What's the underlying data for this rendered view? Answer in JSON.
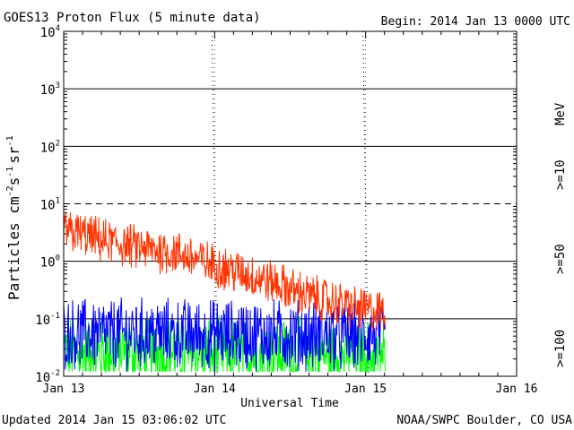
{
  "chart_data": {
    "type": "line",
    "title": "GOES13 Proton Flux (5 minute data)",
    "begin_label": "Begin: 2014 Jan 13 0000 UTC",
    "xlabel": "Universal Time",
    "ylabel_main": "Particles cm",
    "ylabel_sup1": "-2",
    "ylabel_s": "s",
    "ylabel_sup2": "-1",
    "ylabel_sr": "sr",
    "ylabel_sup3": "-1",
    "y_scale": "log",
    "ylim": [
      0.01,
      10000
    ],
    "xlim_days": [
      0,
      3
    ],
    "x_ticks": [
      {
        "day": 0,
        "label": "Jan 13"
      },
      {
        "day": 1,
        "label": "Jan 14"
      },
      {
        "day": 2,
        "label": "Jan 15"
      },
      {
        "day": 3,
        "label": "Jan 16"
      }
    ],
    "y_ticks": [
      {
        "exp": -2,
        "base": "10",
        "sup": "-2"
      },
      {
        "exp": -1,
        "base": "10",
        "sup": "-1"
      },
      {
        "exp": 0,
        "base": "10",
        "sup": "0"
      },
      {
        "exp": 1,
        "base": "10",
        "sup": "1"
      },
      {
        "exp": 2,
        "base": "10",
        "sup": "2"
      },
      {
        "exp": 3,
        "base": "10",
        "sup": "3"
      },
      {
        "exp": 4,
        "base": "10",
        "sup": "4"
      }
    ],
    "solid_gridlines_exp": [
      -1,
      0,
      2,
      3
    ],
    "dashed_gridlines_exp": [
      1
    ],
    "data_end_day": 2.13,
    "series": [
      {
        "name": ">=10",
        "color": "#ff3300",
        "day": [
          0,
          0.1,
          0.25,
          0.5,
          0.75,
          1.0,
          1.2,
          1.4,
          1.6,
          1.8,
          2.0,
          2.13
        ],
        "flux": [
          3.5,
          3.0,
          2.3,
          1.7,
          1.4,
          0.85,
          0.6,
          0.42,
          0.26,
          0.19,
          0.14,
          0.13
        ],
        "noise": 0.35
      },
      {
        "name": ">=50",
        "color": "#0000ff",
        "day": [
          0,
          0.5,
          1.0,
          1.5,
          2.0,
          2.13
        ],
        "flux": [
          0.055,
          0.055,
          0.053,
          0.052,
          0.05,
          0.05
        ],
        "noise": 0.55
      },
      {
        "name": ">=100",
        "color": "#00ff00",
        "day": [
          0,
          0.5,
          1.0,
          1.5,
          2.0,
          2.13
        ],
        "flux": [
          0.026,
          0.026,
          0.025,
          0.025,
          0.024,
          0.024
        ],
        "noise": 0.55
      }
    ],
    "legend_unit": "MeV",
    "legend_placement": "right, vertical"
  },
  "footer": {
    "updated": "Updated 2014 Jan 15 03:06:02 UTC",
    "credit": "NOAA/SWPC Boulder, CO USA"
  }
}
